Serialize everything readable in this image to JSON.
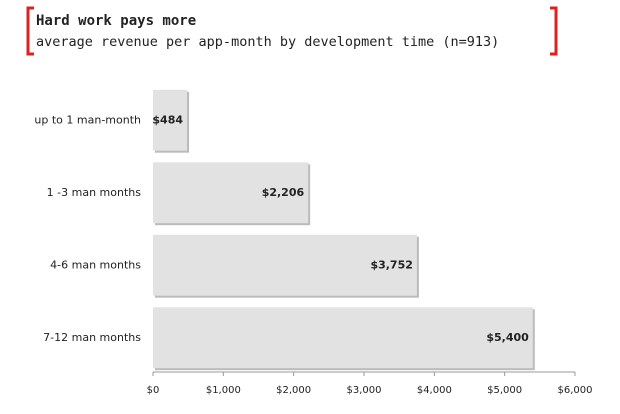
{
  "chart_data": {
    "type": "bar",
    "orientation": "horizontal",
    "title": "Hard work pays more",
    "subtitle": "average revenue per app-month by development time (n=913)",
    "categories": [
      "up to 1 man-month",
      "1 -3 man months",
      "4-6 man months",
      "7-12 man months"
    ],
    "values": [
      484,
      2206,
      3752,
      5400
    ],
    "value_labels": [
      "$484",
      "$2,206",
      "$3,752",
      "$5,400"
    ],
    "color": "#e2e2e2",
    "xlim": [
      0,
      6000
    ],
    "xticks": [
      {
        "value": 0,
        "label": "$0"
      },
      {
        "value": 1000,
        "label": "$1,000"
      },
      {
        "value": 2000,
        "label": "$2,000"
      },
      {
        "value": 3000,
        "label": "$3,000"
      },
      {
        "value": 4000,
        "label": "$4,000"
      },
      {
        "value": 5000,
        "label": "$5,000"
      },
      {
        "value": 6000,
        "label": "$6,000"
      }
    ],
    "grid": false
  }
}
